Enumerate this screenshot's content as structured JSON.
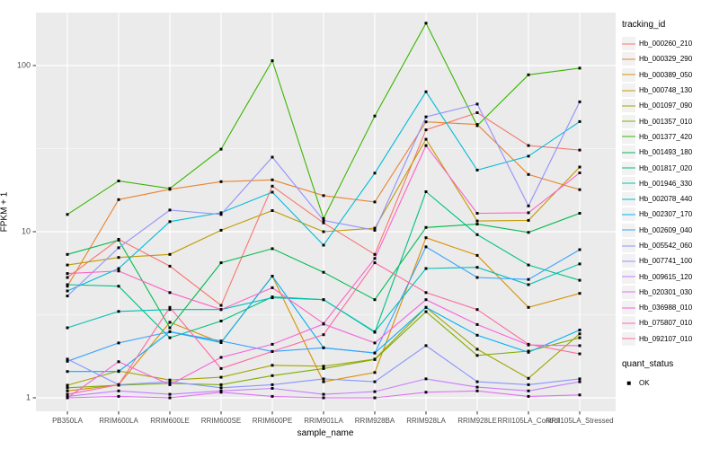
{
  "figure": {
    "x_axis_title": "sample_name",
    "y_axis_title": "FPKM + 1",
    "legend_title_series": "tracking_id",
    "legend_title_status": "quant_status",
    "legend_status_items": [
      "OK"
    ],
    "panel_bg": "#EBEBEB",
    "grid_color": "#FFFFFF",
    "tick_text_color": "#4D4D4D",
    "point_color": "#000000"
  },
  "chart_data": {
    "type": "line",
    "x_label": "sample_name",
    "y_label": "FPKM + 1",
    "y_scale": "log10",
    "y_ticks": [
      1,
      10,
      100
    ],
    "y_minor_ticks": [
      3.162,
      31.62
    ],
    "ylim": [
      0.97,
      230
    ],
    "grid": "on",
    "legend_position": "right",
    "point_shape": "filled-square (quant_status OK)",
    "categories": [
      "PB350LA",
      "RRIM600LA",
      "RRIM600LE",
      "RRIM600SE",
      "RRIM600PE",
      "RRIM901LA",
      "RRIM928BA",
      "RRIM928LA",
      "RRIM928LE",
      "RRII105LA_Control",
      "RRII105LA_Stressed"
    ],
    "series": [
      {
        "name": "Hb_000260_210",
        "color": "#F8766D",
        "values": [
          5.3,
          9.0,
          6.2,
          3.6,
          18.8,
          11.3,
          7.3,
          41,
          52,
          33,
          31
        ]
      },
      {
        "name": "Hb_000329_290",
        "color": "#EA8331",
        "values": [
          4.7,
          15.6,
          18.0,
          20.0,
          20.5,
          16.5,
          15.1,
          45.8,
          44.2,
          22.1,
          17.9
        ]
      },
      {
        "name": "Hb_000389_050",
        "color": "#D89000",
        "values": [
          1.1,
          1.2,
          2.85,
          2.15,
          5.4,
          1.25,
          1.42,
          9.2,
          7.2,
          3.5,
          4.25
        ]
      },
      {
        "name": "Hb_000748_130",
        "color": "#C09B00",
        "values": [
          6.3,
          7.0,
          7.3,
          10.2,
          13.4,
          10.0,
          10.5,
          36.0,
          11.6,
          11.7,
          24.5
        ]
      },
      {
        "name": "Hb_001097_090",
        "color": "#A3A500",
        "values": [
          1.19,
          1.45,
          1.28,
          1.33,
          1.57,
          1.55,
          1.71,
          3.5,
          1.96,
          1.31,
          2.43
        ]
      },
      {
        "name": "Hb_001357_010",
        "color": "#7CAE00",
        "values": [
          1.15,
          1.19,
          1.22,
          1.2,
          1.36,
          1.5,
          1.7,
          3.3,
          1.8,
          1.91,
          2.3
        ]
      },
      {
        "name": "Hb_001377_420",
        "color": "#39B600",
        "values": [
          12.7,
          20.2,
          18.2,
          31.4,
          107,
          12.0,
          49.7,
          180,
          43.5,
          88,
          96.5
        ]
      },
      {
        "name": "Hb_001493_180",
        "color": "#00BB4E",
        "values": [
          7.3,
          8.9,
          2.64,
          6.5,
          7.9,
          5.7,
          3.9,
          10.6,
          11.1,
          9.9,
          12.9
        ]
      },
      {
        "name": "Hb_001817_020",
        "color": "#00C087",
        "values": [
          4.8,
          4.7,
          2.3,
          2.9,
          4.05,
          3.9,
          2.48,
          17.4,
          9.6,
          6.3,
          5.1
        ]
      },
      {
        "name": "Hb_001946_330",
        "color": "#00C0B4",
        "values": [
          2.64,
          3.31,
          3.4,
          3.4,
          4.0,
          3.9,
          2.5,
          6.0,
          6.1,
          4.8,
          6.4
        ]
      },
      {
        "name": "Hb_002078_440",
        "color": "#00BCD8",
        "values": [
          4.4,
          6.0,
          11.5,
          13.0,
          17.3,
          8.3,
          22.5,
          69.5,
          23.5,
          28.5,
          46
        ]
      },
      {
        "name": "Hb_002307_170",
        "color": "#00B0F6",
        "values": [
          1.44,
          1.44,
          2.5,
          2.15,
          5.4,
          2.0,
          1.86,
          3.5,
          2.38,
          1.88,
          2.56
        ]
      },
      {
        "name": "Hb_002609_040",
        "color": "#35A2FF",
        "values": [
          1.66,
          2.14,
          2.5,
          2.2,
          1.9,
          2.0,
          1.86,
          8.1,
          5.3,
          5.16,
          7.8
        ]
      },
      {
        "name": "Hb_005542_060",
        "color": "#8795FF",
        "values": [
          1.71,
          1.2,
          1.25,
          1.15,
          1.2,
          1.3,
          1.25,
          2.06,
          1.25,
          1.2,
          1.3
        ]
      },
      {
        "name": "Hb_007741_100",
        "color": "#9590FF",
        "values": [
          4.1,
          8.0,
          13.5,
          12.7,
          28.1,
          11.7,
          10.2,
          49.1,
          58.6,
          14.3,
          60.5
        ]
      },
      {
        "name": "Hb_009615_120",
        "color": "#C77CFF",
        "values": [
          1.02,
          1.1,
          1.05,
          1.1,
          1.14,
          1.05,
          1.09,
          1.3,
          1.16,
          1.1,
          1.25
        ]
      },
      {
        "name": "Hb_020301_030",
        "color": "#E26EF7",
        "values": [
          1.0,
          1.02,
          1.0,
          1.08,
          1.02,
          1.0,
          1.0,
          1.08,
          1.1,
          1.02,
          1.04
        ]
      },
      {
        "name": "Hb_036988_010",
        "color": "#F763DF",
        "values": [
          1.0,
          1.65,
          1.2,
          1.75,
          2.1,
          2.78,
          2.14,
          3.9,
          2.76,
          2.08,
          2.06
        ]
      },
      {
        "name": "Hb_075807_010",
        "color": "#FF61C7",
        "values": [
          5.6,
          5.8,
          4.3,
          3.4,
          4.6,
          2.8,
          6.9,
          33,
          12.9,
          13.0,
          22.6
        ]
      },
      {
        "name": "Hb_092107_010",
        "color": "#FF689F",
        "values": [
          1.05,
          1.2,
          3.5,
          1.5,
          1.9,
          2.4,
          6.5,
          4.3,
          3.4,
          2.1,
          1.84
        ]
      }
    ]
  }
}
